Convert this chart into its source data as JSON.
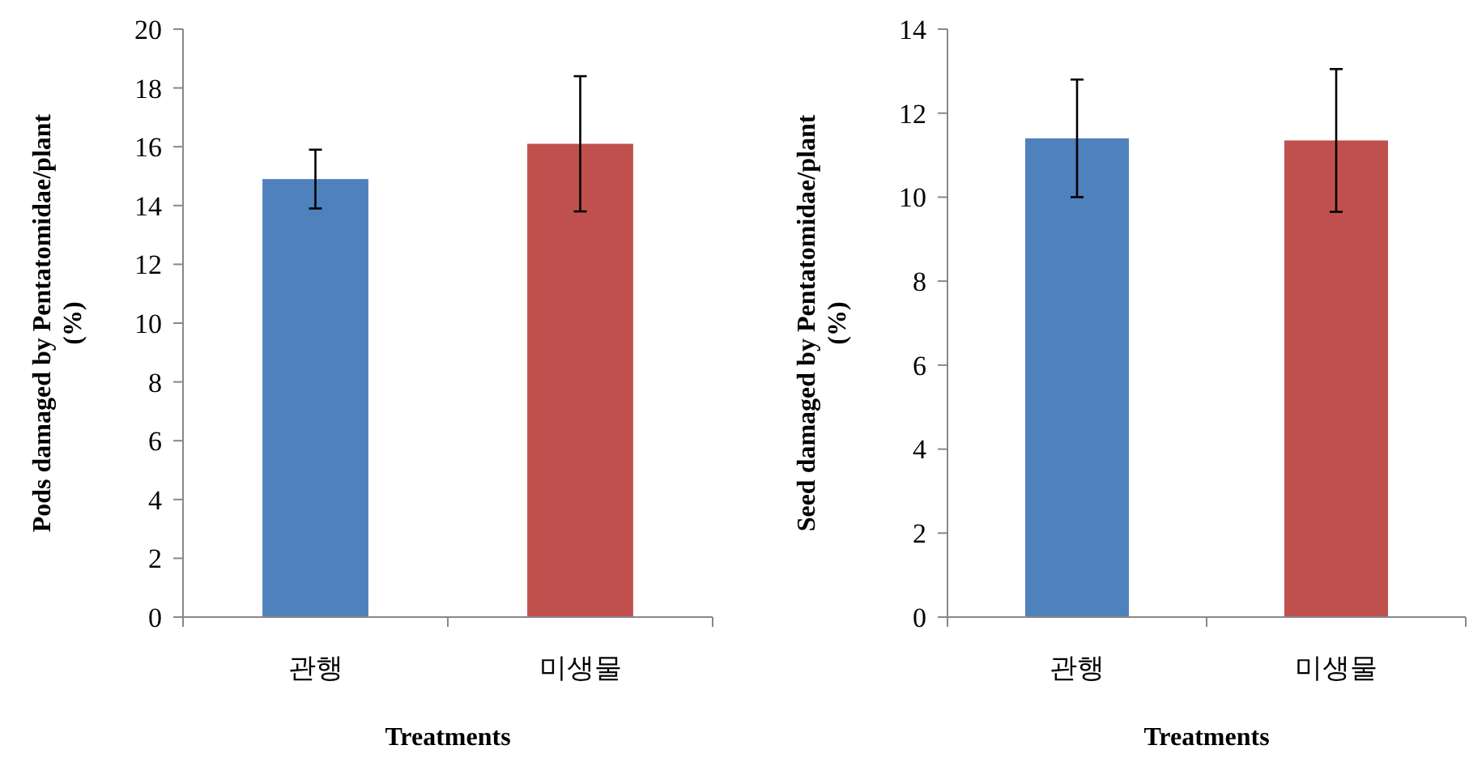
{
  "chart_data": [
    {
      "type": "bar",
      "categories": [
        "관행",
        "미생물"
      ],
      "colors": [
        "#4f81bd",
        "#c0504d"
      ],
      "values": [
        14.9,
        16.1
      ],
      "errors": [
        1.0,
        2.3
      ],
      "ylim": [
        0,
        20
      ],
      "yticks": [
        0,
        2,
        4,
        6,
        8,
        10,
        12,
        14,
        16,
        18,
        20
      ],
      "ylabel": "Pods damaged by Pentatomidae/plant (%)",
      "xlabel": "Treatments",
      "grid": false
    },
    {
      "type": "bar",
      "categories": [
        "관행",
        "미생물"
      ],
      "colors": [
        "#4f81bd",
        "#c0504d"
      ],
      "values": [
        11.4,
        11.35
      ],
      "errors": [
        1.4,
        1.7
      ],
      "ylim": [
        0,
        14
      ],
      "yticks": [
        0,
        2,
        4,
        6,
        8,
        10,
        12,
        14
      ],
      "ylabel": "Seed damaged by Pentatomidae/plant (%)",
      "xlabel": "Treatments",
      "grid": false
    }
  ]
}
